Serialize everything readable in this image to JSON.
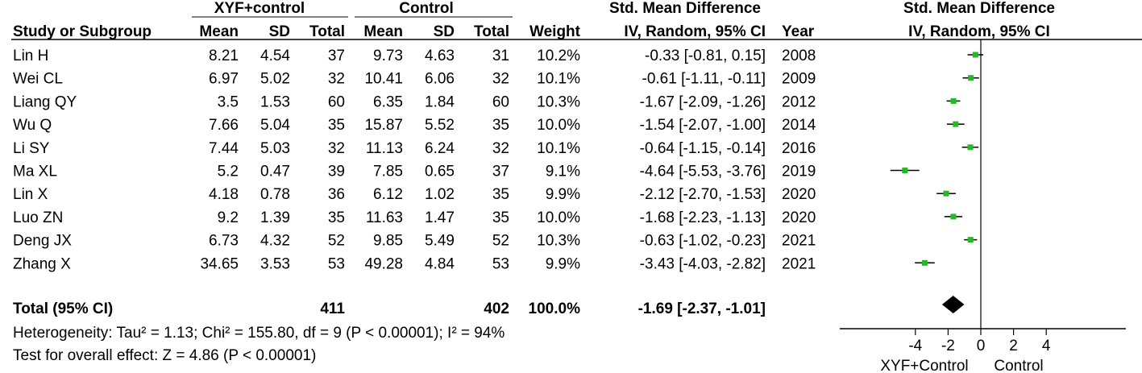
{
  "header": {
    "group1": "XYF+control",
    "group2": "Control",
    "effect_col": "Std. Mean Difference",
    "plot_col": "Std. Mean Difference",
    "study_col": "Study or Subgroup",
    "mean1": "Mean",
    "sd1": "SD",
    "total1": "Total",
    "mean2": "Mean",
    "sd2": "SD",
    "total2": "Total",
    "weight": "Weight",
    "ci_col": "IV, Random, 95% CI",
    "year": "Year",
    "plot_ci": "IV, Random, 95% CI"
  },
  "colors": {
    "point": "#22bb22",
    "line": "#000000"
  },
  "chart_data": {
    "type": "forest",
    "x_label_left": "XYF+Control",
    "x_label_right": "Control",
    "xlim": [
      -6,
      6
    ],
    "xticks": [
      "-4",
      "-2",
      "0",
      "2",
      "4"
    ],
    "studies": [
      {
        "name": "Lin H",
        "mean1": "8.21",
        "sd1": "4.54",
        "n1": "37",
        "mean2": "9.73",
        "sd2": "4.63",
        "n2": "31",
        "weight": "10.2%",
        "ci_text": "-0.33 [-0.81, 0.15]",
        "year": "2008",
        "est": -0.33,
        "lo": -0.81,
        "hi": 0.15
      },
      {
        "name": "Wei CL",
        "mean1": "6.97",
        "sd1": "5.02",
        "n1": "32",
        "mean2": "10.41",
        "sd2": "6.06",
        "n2": "32",
        "weight": "10.1%",
        "ci_text": "-0.61 [-1.11, -0.11]",
        "year": "2009",
        "est": -0.61,
        "lo": -1.11,
        "hi": -0.11
      },
      {
        "name": "Liang QY",
        "mean1": "3.5",
        "sd1": "1.53",
        "n1": "60",
        "mean2": "6.35",
        "sd2": "1.84",
        "n2": "60",
        "weight": "10.3%",
        "ci_text": "-1.67 [-2.09, -1.26]",
        "year": "2012",
        "est": -1.67,
        "lo": -2.09,
        "hi": -1.26
      },
      {
        "name": "Wu Q",
        "mean1": "7.66",
        "sd1": "5.04",
        "n1": "35",
        "mean2": "15.87",
        "sd2": "5.52",
        "n2": "35",
        "weight": "10.0%",
        "ci_text": "-1.54 [-2.07, -1.00]",
        "year": "2014",
        "est": -1.54,
        "lo": -2.07,
        "hi": -1.0
      },
      {
        "name": "Li SY",
        "mean1": "7.44",
        "sd1": "5.03",
        "n1": "32",
        "mean2": "11.13",
        "sd2": "6.24",
        "n2": "32",
        "weight": "10.1%",
        "ci_text": "-0.64 [-1.15, -0.14]",
        "year": "2016",
        "est": -0.64,
        "lo": -1.15,
        "hi": -0.14
      },
      {
        "name": "Ma XL",
        "mean1": "5.2",
        "sd1": "0.47",
        "n1": "39",
        "mean2": "7.85",
        "sd2": "0.65",
        "n2": "37",
        "weight": "9.1%",
        "ci_text": "-4.64 [-5.53, -3.76]",
        "year": "2019",
        "est": -4.64,
        "lo": -5.53,
        "hi": -3.76
      },
      {
        "name": "Lin X",
        "mean1": "4.18",
        "sd1": "0.78",
        "n1": "36",
        "mean2": "6.12",
        "sd2": "1.02",
        "n2": "35",
        "weight": "9.9%",
        "ci_text": "-2.12 [-2.70, -1.53]",
        "year": "2020",
        "est": -2.12,
        "lo": -2.7,
        "hi": -1.53
      },
      {
        "name": "Luo ZN",
        "mean1": "9.2",
        "sd1": "1.39",
        "n1": "35",
        "mean2": "11.63",
        "sd2": "1.47",
        "n2": "35",
        "weight": "10.0%",
        "ci_text": "-1.68 [-2.23, -1.13]",
        "year": "2020",
        "est": -1.68,
        "lo": -2.23,
        "hi": -1.13
      },
      {
        "name": "Deng JX",
        "mean1": "6.73",
        "sd1": "4.32",
        "n1": "52",
        "mean2": "9.85",
        "sd2": "5.49",
        "n2": "52",
        "weight": "10.3%",
        "ci_text": "-0.63 [-1.02, -0.23]",
        "year": "2021",
        "est": -0.63,
        "lo": -1.02,
        "hi": -0.23
      },
      {
        "name": "Zhang X",
        "mean1": "34.65",
        "sd1": "3.53",
        "n1": "53",
        "mean2": "49.28",
        "sd2": "4.84",
        "n2": "53",
        "weight": "9.9%",
        "ci_text": "-3.43 [-4.03, -2.82]",
        "year": "2021",
        "est": -3.43,
        "lo": -4.03,
        "hi": -2.82
      }
    ],
    "total": {
      "label": "Total (95% CI)",
      "n1": "411",
      "n2": "402",
      "weight": "100.0%",
      "ci_text": "-1.69 [-2.37, -1.01]",
      "est": -1.69,
      "lo": -2.37,
      "hi": -1.01
    },
    "heterogeneity": "Heterogeneity: Tau² = 1.13; Chi² = 155.80, df = 9 (P < 0.00001); I² = 94%",
    "overall_effect": "Test for overall effect: Z = 4.86 (P < 0.00001)"
  }
}
